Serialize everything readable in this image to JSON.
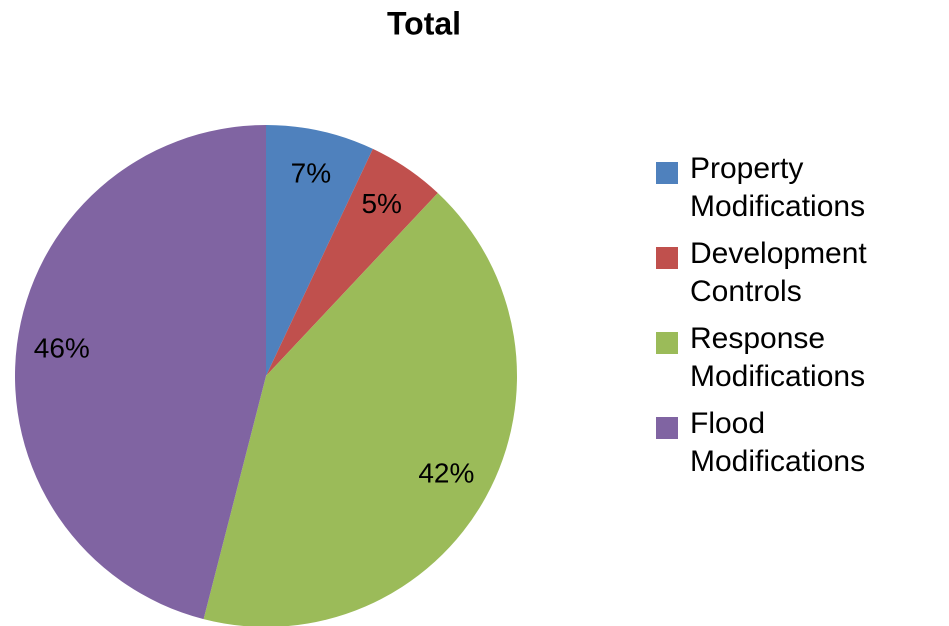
{
  "chart_data": {
    "type": "pie",
    "title": "Total",
    "categories": [
      "Property Modifications",
      "Development Controls",
      "Response Modifications",
      "Flood Modifications"
    ],
    "values": [
      7,
      5,
      42,
      46
    ],
    "value_labels": [
      "7%",
      "5%",
      "42%",
      "46%"
    ],
    "colors": [
      "#4f81bd",
      "#c0504d",
      "#9bbb59",
      "#8064a2"
    ],
    "legend": "right"
  }
}
